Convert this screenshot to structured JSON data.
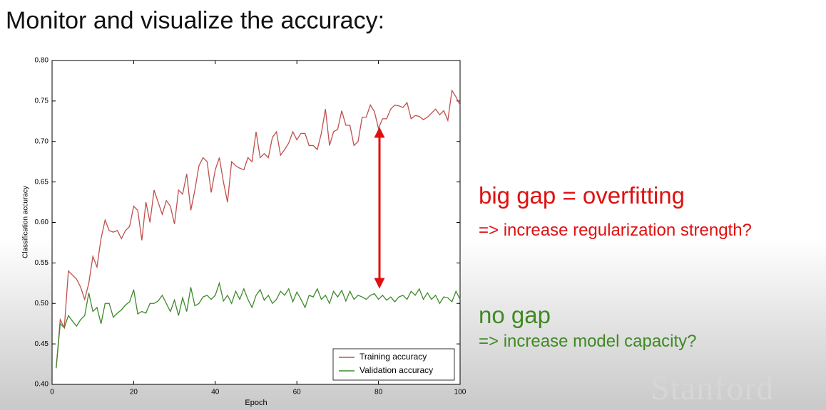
{
  "title": "Monitor and visualize the accuracy:",
  "notes": [
    "big gap = overfitting",
    "=> increase regularization strength?",
    "no gap",
    "=> increase model capacity?"
  ],
  "logo": "Stanford",
  "chart_data": {
    "type": "line",
    "xlabel": "Epoch",
    "ylabel": "Classification accuracy",
    "xlim": [
      0,
      100
    ],
    "xticks": [
      0,
      20,
      40,
      60,
      80,
      100
    ],
    "ylim": [
      0.4,
      0.8
    ],
    "yticks": [
      {
        "value": 0.4,
        "label": "0.40"
      },
      {
        "value": 0.45,
        "label": "0.45"
      },
      {
        "value": 0.5,
        "label": "0.50"
      },
      {
        "value": 0.55,
        "label": "0.55"
      },
      {
        "value": 0.6,
        "label": "0.60"
      },
      {
        "value": 0.65,
        "label": "0.65"
      },
      {
        "value": 0.7,
        "label": "0.70"
      },
      {
        "value": 0.75,
        "label": "0.75"
      },
      {
        "value": 0.8,
        "label": "0.80"
      }
    ],
    "legend": "lower right",
    "x": [
      1,
      2,
      3,
      4,
      5,
      6,
      7,
      8,
      9,
      10,
      11,
      12,
      13,
      14,
      15,
      16,
      17,
      18,
      19,
      20,
      21,
      22,
      23,
      24,
      25,
      26,
      27,
      28,
      29,
      30,
      31,
      32,
      33,
      34,
      35,
      36,
      37,
      38,
      39,
      40,
      41,
      42,
      43,
      44,
      45,
      46,
      47,
      48,
      49,
      50,
      51,
      52,
      53,
      54,
      55,
      56,
      57,
      58,
      59,
      60,
      61,
      62,
      63,
      64,
      65,
      66,
      67,
      68,
      69,
      70,
      71,
      72,
      73,
      74,
      75,
      76,
      77,
      78,
      79,
      80,
      81,
      82,
      83,
      84,
      85,
      86,
      87,
      88,
      89,
      90,
      91,
      92,
      93,
      94,
      95,
      96,
      97,
      98,
      99,
      100
    ],
    "series": [
      {
        "name": "Training accuracy",
        "color": "#c0504d",
        "values": [
          0.42,
          0.48,
          0.47,
          0.54,
          0.535,
          0.53,
          0.52,
          0.505,
          0.525,
          0.558,
          0.545,
          0.58,
          0.603,
          0.59,
          0.588,
          0.59,
          0.58,
          0.59,
          0.595,
          0.62,
          0.615,
          0.578,
          0.625,
          0.6,
          0.64,
          0.625,
          0.61,
          0.627,
          0.62,
          0.598,
          0.64,
          0.635,
          0.66,
          0.615,
          0.64,
          0.67,
          0.68,
          0.675,
          0.637,
          0.665,
          0.68,
          0.65,
          0.625,
          0.675,
          0.67,
          0.667,
          0.665,
          0.68,
          0.675,
          0.712,
          0.68,
          0.685,
          0.68,
          0.705,
          0.712,
          0.683,
          0.69,
          0.698,
          0.712,
          0.702,
          0.71,
          0.71,
          0.695,
          0.695,
          0.69,
          0.71,
          0.74,
          0.695,
          0.712,
          0.715,
          0.738,
          0.72,
          0.72,
          0.695,
          0.7,
          0.73,
          0.73,
          0.745,
          0.737,
          0.716,
          0.728,
          0.728,
          0.74,
          0.745,
          0.744,
          0.742,
          0.748,
          0.728,
          0.732,
          0.731,
          0.727,
          0.73,
          0.735,
          0.74,
          0.733,
          0.738,
          0.726,
          0.763,
          0.755,
          0.745
        ]
      },
      {
        "name": "Validation accuracy",
        "color": "#3d8a2a",
        "values": [
          0.42,
          0.475,
          0.47,
          0.485,
          0.478,
          0.472,
          0.48,
          0.485,
          0.513,
          0.49,
          0.495,
          0.475,
          0.5,
          0.5,
          0.483,
          0.488,
          0.492,
          0.498,
          0.502,
          0.517,
          0.487,
          0.49,
          0.488,
          0.5,
          0.5,
          0.503,
          0.51,
          0.5,
          0.49,
          0.504,
          0.485,
          0.507,
          0.49,
          0.52,
          0.497,
          0.5,
          0.508,
          0.51,
          0.505,
          0.51,
          0.525,
          0.503,
          0.51,
          0.5,
          0.515,
          0.505,
          0.518,
          0.505,
          0.495,
          0.51,
          0.517,
          0.504,
          0.51,
          0.5,
          0.505,
          0.515,
          0.51,
          0.518,
          0.502,
          0.514,
          0.505,
          0.495,
          0.51,
          0.508,
          0.518,
          0.505,
          0.51,
          0.5,
          0.515,
          0.508,
          0.516,
          0.503,
          0.515,
          0.505,
          0.51,
          0.508,
          0.505,
          0.51,
          0.512,
          0.505,
          0.51,
          0.504,
          0.508,
          0.502,
          0.508,
          0.51,
          0.505,
          0.515,
          0.51,
          0.518,
          0.505,
          0.513,
          0.505,
          0.51,
          0.5,
          0.508,
          0.507,
          0.502,
          0.515,
          0.505
        ]
      }
    ]
  }
}
